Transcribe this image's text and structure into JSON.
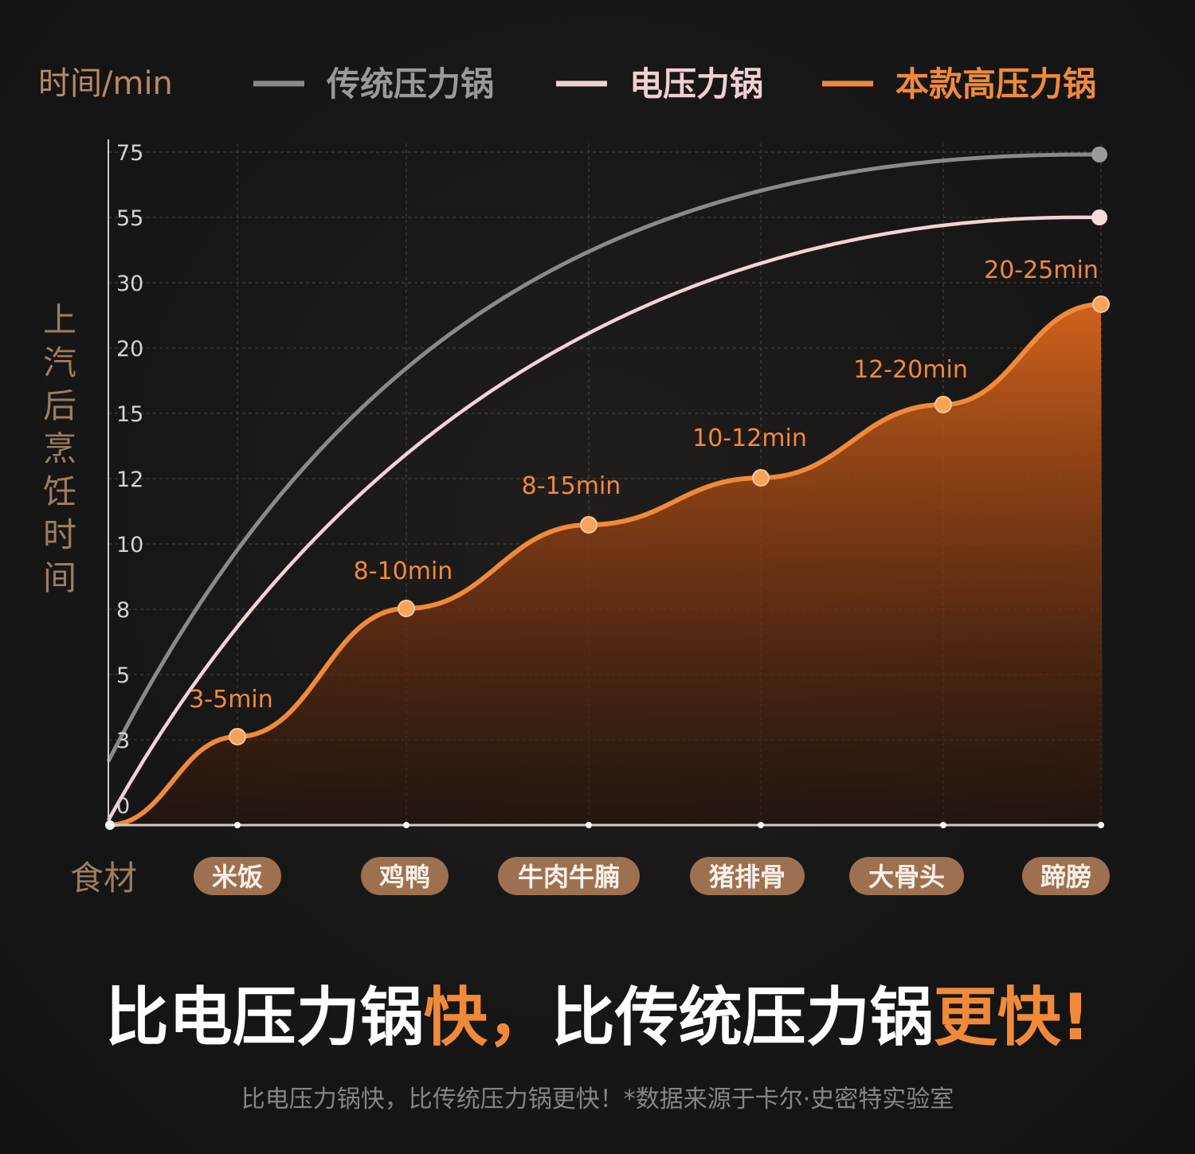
{
  "chart_data": {
    "type": "line",
    "y_unit_label": "时间/min",
    "ylabel": "上汽后烹饪时间",
    "xlabel": "食材",
    "y_ticks": [
      0,
      3,
      5,
      8,
      10,
      12,
      15,
      20,
      30,
      55,
      75
    ],
    "categories": [
      "米饭",
      "鸡鸭",
      "牛肉牛腩",
      "猪排骨",
      "大骨头",
      "蹄膀"
    ],
    "series": [
      {
        "name": "传统压力锅",
        "color": "#8a8a8a",
        "start": 2,
        "end": 75
      },
      {
        "name": "电压力锅",
        "color": "#f0d0d2",
        "start": 0,
        "end": 55
      },
      {
        "name": "本款高压力锅",
        "color": "#f08a3a",
        "start": 0,
        "values": [
          3,
          8,
          10.5,
          12,
          15,
          25
        ],
        "data_labels": [
          "3-5min",
          "8-10min",
          "8-15min",
          "10-12min",
          "12-20min",
          "20-25min"
        ]
      }
    ],
    "grid": true,
    "legend_position": "top"
  },
  "headline": {
    "part1": "比电压力锅",
    "accent1": "快，",
    "part2": "比传统压力锅",
    "accent2": "更快!"
  },
  "footnote": "比电压力锅快，比传统压力锅更快！*数据来源于卡尔·史密特实验室"
}
